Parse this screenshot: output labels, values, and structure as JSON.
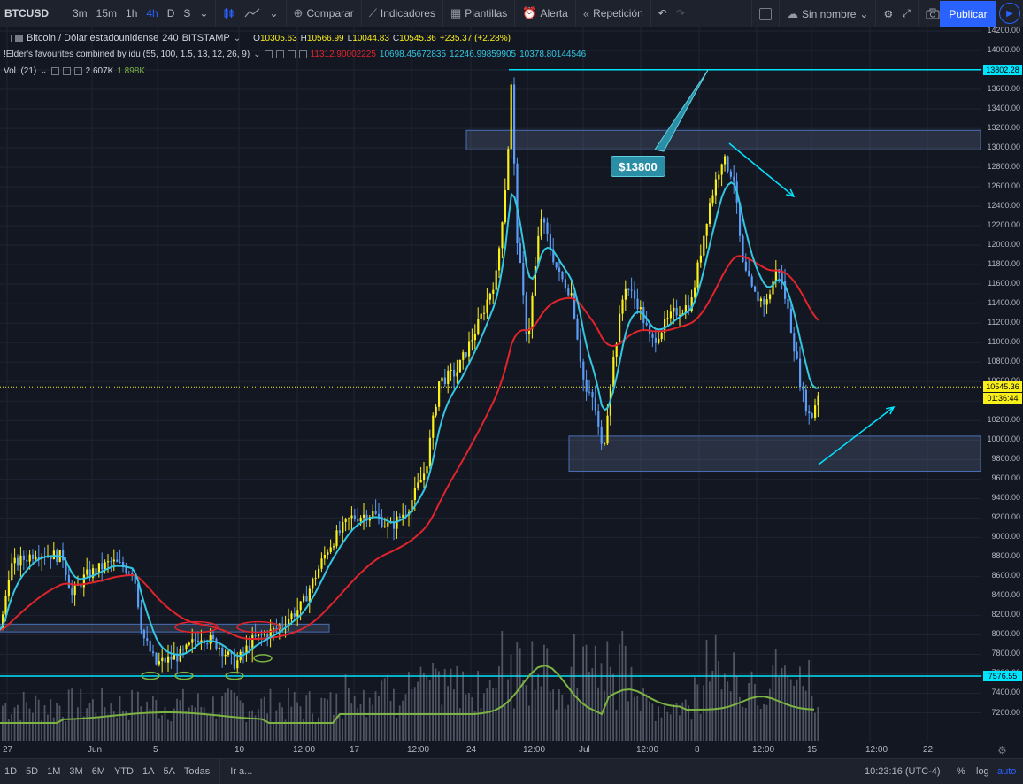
{
  "toolbar": {
    "symbol": "BTCUSD",
    "intervals": [
      "3m",
      "15m",
      "1h",
      "4h",
      "D",
      "S"
    ],
    "active_interval": "4h",
    "compare": "Comparar",
    "indicators": "Indicadores",
    "templates": "Plantillas",
    "alert": "Alerta",
    "replay": "Repetición",
    "layout_name": "Sin nombre",
    "publish": "Publicar"
  },
  "legend": {
    "title": "Bitcoin / Dólar estadounidense",
    "interval": "240",
    "exchange": "BITSTAMP",
    "open_label": "O",
    "open": "10305.63",
    "high_label": "H",
    "high": "10566.99",
    "low_label": "L",
    "low": "10044.83",
    "close_label": "C",
    "close": "10545.36",
    "change": "+235.37 (+2.28%)",
    "indicator_name": "!Elder's favourites combined by idu (55, 100, 1.5, 13, 12, 26, 9)",
    "ind_values": [
      "11312.90002225",
      "10698.45672835",
      "12246.99859905",
      "10378.80144546"
    ],
    "ind_colors": [
      "#e0242c",
      "#34c6e0",
      "#34c6e0",
      "#34c6e0"
    ],
    "vol_name": "Vol. (21)",
    "vol_value": "2.607K",
    "vol_ma": "1.898K"
  },
  "price_axis": {
    "ticks": [
      "14200.00",
      "14000.00",
      "13800.00",
      "13600.00",
      "13400.00",
      "13200.00",
      "13000.00",
      "12800.00",
      "12600.00",
      "12400.00",
      "12200.00",
      "12000.00",
      "11800.00",
      "11600.00",
      "11400.00",
      "11200.00",
      "11000.00",
      "10800.00",
      "10600.00",
      "10400.00",
      "10200.00",
      "10000.00",
      "9800.00",
      "9600.00",
      "9400.00",
      "9200.00",
      "9000.00",
      "8800.00",
      "8600.00",
      "8400.00",
      "8200.00",
      "8000.00",
      "7800.00",
      "7600.00",
      "7400.00",
      "7200.00"
    ],
    "label_top": "13802.28",
    "label_price": "10545.36",
    "label_countdown": "01:36:44",
    "label_bottom": "7576.55"
  },
  "annotation": {
    "callout_text": "$13800"
  },
  "time_axis": {
    "ticks": [
      "27",
      "Jun",
      "5",
      "10",
      "12:00",
      "17",
      "12:00",
      "24",
      "12:00",
      "Jul",
      "12:00",
      "8",
      "12:00",
      "15",
      "12:00",
      "22"
    ]
  },
  "bottombar": {
    "ranges": [
      "1D",
      "5D",
      "1M",
      "3M",
      "6M",
      "YTD",
      "1A",
      "5A",
      "Todas"
    ],
    "goto": "Ir a...",
    "time": "10:23:16 (UTC-4)",
    "percent": "%",
    "log": "log",
    "auto": "auto"
  },
  "colors": {
    "background": "#131722",
    "bull": "#f9ef19",
    "bear": "#5b9cf6",
    "ema_fast": "#34c6e0",
    "ema_slow": "#e0242c",
    "vol_ma": "#7cb342",
    "hline": "#00e5ff"
  }
}
